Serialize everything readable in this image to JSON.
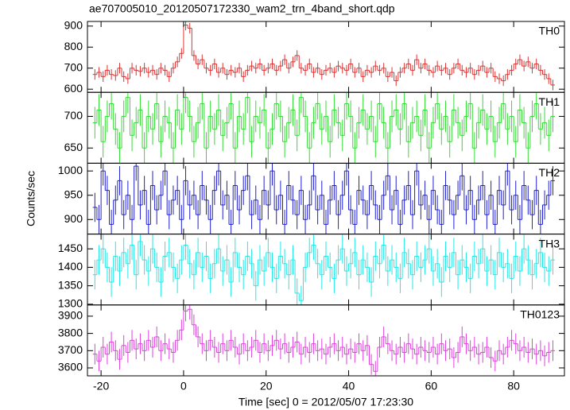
{
  "chart_data": {
    "type": "step",
    "title": "ae707005010_20120507172330_wam2_trn_4band_short.qdp",
    "xlabel": "Time [sec] 0 = 2012/05/07 17:23:30",
    "ylabel": "Counts/sec",
    "xlim": [
      -23.3,
      92.3
    ],
    "xticks": [
      -20,
      0,
      20,
      40,
      60,
      80
    ],
    "x": [
      -21.5,
      -20.5,
      -19.5,
      -18.5,
      -17.5,
      -16.5,
      -15.5,
      -14.5,
      -13.5,
      -12.5,
      -11.5,
      -10.5,
      -9.5,
      -8.5,
      -7.5,
      -6.5,
      -5.5,
      -4.5,
      -3.5,
      -2.5,
      -1.5,
      -0.5,
      0.5,
      1.5,
      2.5,
      3.5,
      4.5,
      5.5,
      6.5,
      7.5,
      8.5,
      9.5,
      10.5,
      11.5,
      12.5,
      13.5,
      14.5,
      15.5,
      16.5,
      17.5,
      18.5,
      19.5,
      20.5,
      21.5,
      22.5,
      23.5,
      24.5,
      25.5,
      26.5,
      27.5,
      28.5,
      29.5,
      30.5,
      31.5,
      32.5,
      33.5,
      34.5,
      35.5,
      36.5,
      37.5,
      38.5,
      39.5,
      40.5,
      41.5,
      42.5,
      43.5,
      44.5,
      45.5,
      46.5,
      47.5,
      48.5,
      49.5,
      50.5,
      51.5,
      52.5,
      53.5,
      54.5,
      55.5,
      56.5,
      57.5,
      58.5,
      59.5,
      60.5,
      61.5,
      62.5,
      63.5,
      64.5,
      65.5,
      66.5,
      67.5,
      68.5,
      69.5,
      70.5,
      71.5,
      72.5,
      73.5,
      74.5,
      75.5,
      76.5,
      77.5,
      78.5,
      79.5,
      80.5,
      81.5,
      82.5,
      83.5,
      84.5,
      85.5,
      86.5,
      87.5,
      88.5,
      89.5
    ],
    "series": [
      {
        "name": "TH0",
        "color": "#e03232",
        "ylim": [
          585,
          922
        ],
        "yticks": [
          600,
          700,
          800,
          900
        ],
        "error": 25,
        "values": [
          670,
          680,
          660,
          690,
          670,
          665,
          700,
          660,
          650,
          700,
          690,
          685,
          700,
          680,
          690,
          670,
          700,
          690,
          660,
          700,
          730,
          770,
          905,
          890,
          760,
          720,
          740,
          700,
          690,
          720,
          680,
          700,
          670,
          690,
          680,
          700,
          660,
          690,
          710,
          700,
          720,
          690,
          700,
          720,
          690,
          710,
          740,
          700,
          730,
          760,
          700,
          690,
          720,
          680,
          700,
          670,
          690,
          700,
          680,
          710,
          700,
          690,
          720,
          680,
          700,
          660,
          690,
          680,
          710,
          690,
          700,
          660,
          680,
          640,
          680,
          700,
          720,
          690,
          740,
          700,
          720,
          690,
          680,
          710,
          690,
          700,
          670,
          700,
          720,
          690,
          680,
          700,
          670,
          690,
          710,
          680,
          700,
          660,
          650,
          640,
          670,
          690,
          720,
          740,
          710,
          730,
          700,
          720,
          690,
          670,
          650,
          620
        ]
      },
      {
        "name": "TH1",
        "color": "#33dd33",
        "ylim": [
          626,
          738
        ],
        "yticks": [
          650,
          700
        ],
        "error": 25,
        "values": [
          690,
          710,
          660,
          700,
          720,
          680,
          650,
          700,
          730,
          670,
          690,
          710,
          650,
          700,
          680,
          720,
          660,
          700,
          690,
          650,
          710,
          680,
          730,
          700,
          660,
          690,
          720,
          650,
          700,
          680,
          710,
          670,
          690,
          720,
          650,
          700,
          680,
          730,
          660,
          700,
          690,
          710,
          650,
          680,
          720,
          700,
          660,
          690,
          710,
          670,
          730,
          700,
          650,
          690,
          720,
          680,
          700,
          660,
          710,
          690,
          670,
          720,
          700,
          650,
          690,
          710,
          680,
          700,
          660,
          720,
          690,
          650,
          700,
          710,
          680,
          720,
          660,
          690,
          700,
          670,
          710,
          650,
          690,
          720,
          680,
          700,
          660,
          710,
          690,
          670,
          700,
          720,
          650,
          690,
          710,
          680,
          700,
          660,
          690,
          720,
          680,
          700,
          660,
          710,
          690,
          650,
          700,
          720,
          680,
          690,
          670,
          700
        ]
      },
      {
        "name": "TH2",
        "color": "#2020d0",
        "ylim": [
          870,
          1016
        ],
        "yticks": [
          900,
          950,
          1000
        ],
        "error": 30,
        "values": [
          925,
          900,
          1000,
          960,
          890,
          940,
          980,
          910,
          950,
          900,
          1010,
          930,
          960,
          890,
          970,
          920,
          950,
          1000,
          910,
          940,
          960,
          900,
          980,
          930,
          950,
          910,
          970,
          940,
          900,
          960,
          1000,
          930,
          950,
          890,
          970,
          920,
          960,
          990,
          910,
          940,
          900,
          960,
          930,
          1000,
          920,
          950,
          890,
          970,
          940,
          910,
          960,
          900,
          930,
          990,
          920,
          950,
          890,
          940,
          970,
          910,
          950,
          1000,
          920,
          890,
          960,
          940,
          910,
          970,
          930,
          900,
          950,
          990,
          920,
          960,
          890,
          940,
          970,
          910,
          1000,
          930,
          950,
          900,
          960,
          920,
          890,
          970,
          940,
          910,
          950,
          990,
          920,
          960,
          900,
          940,
          970,
          910,
          950,
          890,
          960,
          930,
          1000,
          920,
          950,
          900,
          970,
          940,
          910,
          960,
          890,
          930,
          950,
          980
        ]
      },
      {
        "name": "TH3",
        "color": "#22e8e8",
        "ylim": [
          1298,
          1490
        ],
        "yticks": [
          1300,
          1350,
          1400,
          1450
        ],
        "error": 40,
        "values": [
          1380,
          1420,
          1450,
          1400,
          1360,
          1430,
          1390,
          1440,
          1410,
          1460,
          1380,
          1470,
          1420,
          1390,
          1450,
          1400,
          1360,
          1430,
          1440,
          1400,
          1370,
          1420,
          1460,
          1410,
          1380,
          1440,
          1400,
          1430,
          1370,
          1410,
          1450,
          1390,
          1420,
          1360,
          1440,
          1400,
          1380,
          1430,
          1410,
          1350,
          1420,
          1390,
          1440,
          1400,
          1370,
          1430,
          1410,
          1380,
          1420,
          1330,
          1310,
          1400,
          1440,
          1460,
          1410,
          1380,
          1430,
          1400,
          1370,
          1420,
          1450,
          1390,
          1410,
          1440,
          1380,
          1420,
          1400,
          1360,
          1430,
          1410,
          1460,
          1390,
          1420,
          1400,
          1370,
          1440,
          1410,
          1380,
          1430,
          1400,
          1420,
          1450,
          1390,
          1410,
          1360,
          1430,
          1400,
          1440,
          1380,
          1420,
          1400,
          1370,
          1430,
          1410,
          1450,
          1390,
          1420,
          1380,
          1440,
          1400,
          1410,
          1370,
          1430,
          1390,
          1450,
          1420,
          1380,
          1410,
          1440,
          1400,
          1390,
          1420
        ]
      },
      {
        "name": "TH0123",
        "color": "#e040e0",
        "ylim": [
          3554,
          3965
        ],
        "yticks": [
          3600,
          3700,
          3800,
          3900
        ],
        "error": 60,
        "values": [
          3680,
          3640,
          3720,
          3680,
          3750,
          3700,
          3650,
          3730,
          3690,
          3760,
          3710,
          3740,
          3700,
          3760,
          3720,
          3780,
          3700,
          3740,
          3710,
          3690,
          3760,
          3820,
          3930,
          3940,
          3850,
          3780,
          3740,
          3700,
          3760,
          3720,
          3690,
          3740,
          3700,
          3760,
          3720,
          3680,
          3740,
          3700,
          3720,
          3760,
          3690,
          3740,
          3700,
          3730,
          3760,
          3710,
          3740,
          3690,
          3720,
          3750,
          3680,
          3720,
          3690,
          3740,
          3700,
          3710,
          3680,
          3720,
          3740,
          3700,
          3720,
          3680,
          3710,
          3690,
          3740,
          3700,
          3730,
          3620,
          3580,
          3720,
          3780,
          3740,
          3700,
          3680,
          3720,
          3690,
          3740,
          3710,
          3680,
          3720,
          3700,
          3690,
          3720,
          3680,
          3740,
          3700,
          3710,
          3660,
          3690,
          3780,
          3740,
          3700,
          3720,
          3680,
          3690,
          3720,
          3660,
          3640,
          3700,
          3680,
          3720,
          3760,
          3740,
          3700,
          3720,
          3690,
          3710,
          3680,
          3700,
          3670,
          3690,
          3700
        ]
      }
    ]
  }
}
